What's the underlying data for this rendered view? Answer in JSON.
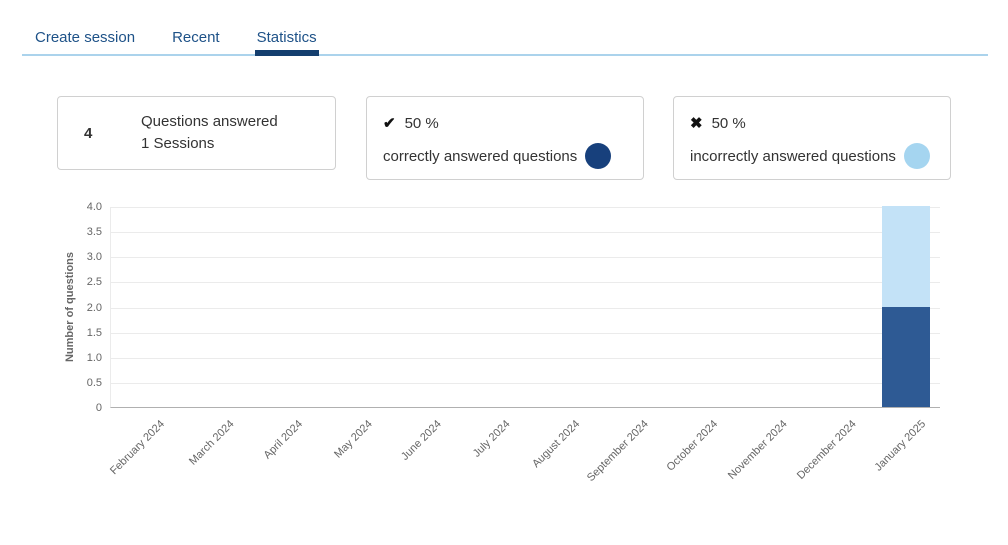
{
  "theme": {
    "tab_text": "#1e5288",
    "active_tab_underline": "#143e6e",
    "tab_divider": "#abd3ec",
    "card_border": "#d0d0d0",
    "text_primary": "#333333",
    "axis_text": "#666666",
    "gridline": "#ebebeb",
    "axis_line": "#b0b0b0"
  },
  "tabs": {
    "items": [
      {
        "label": "Create session",
        "active": false
      },
      {
        "label": "Recent",
        "active": false
      },
      {
        "label": "Statistics",
        "active": true
      }
    ]
  },
  "cards": {
    "summary": {
      "value": "4",
      "title": "Questions answered",
      "subtitle": "1 Sessions"
    },
    "correct": {
      "icon": "check-icon",
      "glyph": "✔",
      "percent": "50 %",
      "label": "correctly answered questions",
      "dot_color": "#17407c"
    },
    "incorrect": {
      "icon": "cross-icon",
      "glyph": "✖",
      "percent": "50 %",
      "label": "incorrectly answered questions",
      "dot_color": "#a5d5f0"
    }
  },
  "chart_data": {
    "type": "bar",
    "stacked": true,
    "title": "",
    "xlabel": "",
    "ylabel": "Number of questions",
    "ylim": [
      0,
      4
    ],
    "yticks": [
      0,
      0.5,
      1,
      1.5,
      2,
      2.5,
      3,
      3.5,
      4
    ],
    "ytick_labels": [
      "0",
      "0.5",
      "1.0",
      "1.5",
      "2.0",
      "2.5",
      "3.0",
      "3.5",
      "4.0"
    ],
    "categories": [
      "February 2024",
      "March 2024",
      "April 2024",
      "May 2024",
      "June 2024",
      "July 2024",
      "August 2024",
      "September 2024",
      "October 2024",
      "November 2024",
      "December 2024",
      "January 2025"
    ],
    "series": [
      {
        "name": "correctly answered questions",
        "color": "#2e5a94",
        "values": [
          0,
          0,
          0,
          0,
          0,
          0,
          0,
          0,
          0,
          0,
          0,
          2
        ]
      },
      {
        "name": "incorrectly answered questions",
        "color": "#c3e2f7",
        "values": [
          0,
          0,
          0,
          0,
          0,
          0,
          0,
          0,
          0,
          0,
          0,
          2
        ]
      }
    ],
    "grid": true,
    "legend": "none"
  }
}
